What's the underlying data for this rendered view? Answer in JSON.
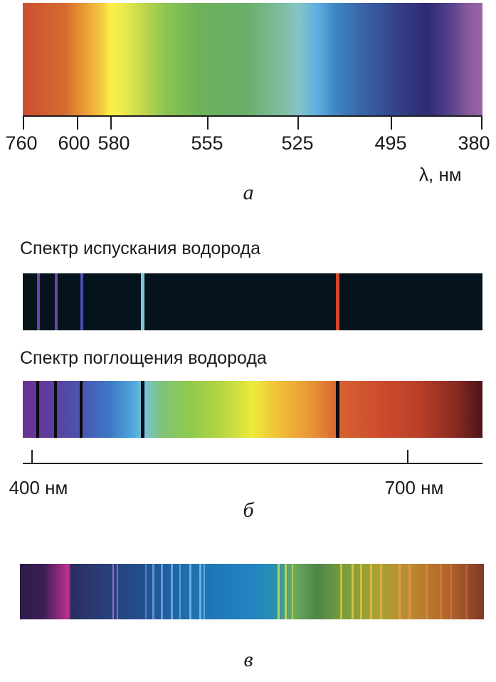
{
  "panel_a": {
    "tick_labels": [
      "760",
      "600",
      "580",
      "555",
      "525",
      "495",
      "380"
    ],
    "unit": "λ, нм",
    "letter": "а"
  },
  "panel_b": {
    "emission_caption": "Спектр испускания водорода",
    "absorption_caption": "Спектр поглощения водорода",
    "scale_left": "400 нм",
    "scale_right": "700 нм",
    "letter": "б",
    "emission_line_colors": [
      "#6a44a6",
      "#6a44a6",
      "#4a4fb0",
      "#7cc8d8",
      "#d8452a"
    ]
  },
  "panel_c": {
    "letter": "в"
  }
}
